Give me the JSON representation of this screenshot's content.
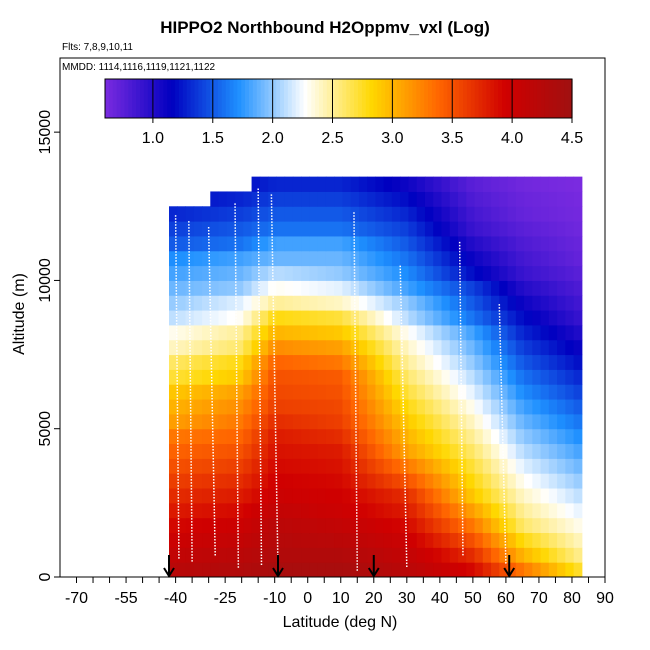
{
  "chart_data": {
    "type": "heatmap",
    "title": "HIPPO2 Northbound H2Oppmv_vxl (Log)",
    "flights_label": "Flts: 7,8,9,10,11",
    "dates_label": "MMDD: 1114,1116,1119,1121,1122",
    "xlabel": "Latitude (deg N)",
    "ylabel": "Altitude (m)",
    "xlim": [
      -75,
      90
    ],
    "ylim": [
      0,
      17500
    ],
    "x_ticks": [
      -70,
      -55,
      -40,
      -25,
      -10,
      0,
      10,
      20,
      30,
      40,
      50,
      60,
      70,
      80,
      90
    ],
    "y_ticks": [
      0,
      5000,
      10000,
      15000
    ],
    "colorbar": {
      "min": 0.6,
      "max": 4.5,
      "ticks": [
        1.0,
        1.5,
        2.0,
        2.5,
        3.0,
        3.5,
        4.0,
        4.5
      ],
      "tick_labels": [
        "1.0",
        "1.5",
        "2.0",
        "2.5",
        "3.0",
        "3.5",
        "4.0",
        "4.5"
      ],
      "colors": [
        "#7b2be0",
        "#0000c0",
        "#1e90ff",
        "#ffffff",
        "#ffd700",
        "#ff6600",
        "#d00000",
        "#a01010"
      ]
    },
    "arrow_latitudes": [
      -42,
      -9,
      20,
      61
    ],
    "altitude_bins_m": [
      0,
      500,
      1000,
      1500,
      2000,
      2500,
      3000,
      3500,
      4000,
      4500,
      5000,
      5500,
      6000,
      6500,
      7000,
      7500,
      8000,
      8500,
      9000,
      9500,
      10000,
      10500,
      11000,
      11500,
      12000,
      12500,
      13000,
      13500
    ],
    "lat_range_by_bin": [
      [
        -42,
        83
      ],
      [
        -42,
        83
      ],
      [
        -42,
        83
      ],
      [
        -42,
        83
      ],
      [
        -42,
        83
      ],
      [
        -42,
        83
      ],
      [
        -42,
        83
      ],
      [
        -42,
        83
      ],
      [
        -42,
        83
      ],
      [
        -42,
        83
      ],
      [
        -42,
        83
      ],
      [
        -42,
        83
      ],
      [
        -42,
        83
      ],
      [
        -42,
        83
      ],
      [
        -42,
        83
      ],
      [
        -42,
        83
      ],
      [
        -42,
        83
      ],
      [
        -42,
        83
      ],
      [
        -42,
        83
      ],
      [
        -42,
        82
      ],
      [
        -42,
        82
      ],
      [
        -42,
        82
      ],
      [
        -42,
        82
      ],
      [
        -42,
        81
      ],
      [
        -42,
        81
      ],
      [
        -30,
        81
      ],
      [
        -18,
        81
      ]
    ],
    "log_h2o_profile": [
      {
        "lat": -42,
        "values": [
          4.2,
          4.1,
          4.0,
          3.9,
          3.8,
          3.7,
          3.6,
          3.5,
          3.4,
          3.3,
          3.1,
          3.0,
          2.9,
          2.7,
          2.6,
          2.4,
          2.3,
          2.1,
          2.0,
          1.9,
          1.8,
          1.7,
          1.5,
          1.4,
          1.3,
          1.2,
          1.1
        ]
      },
      {
        "lat": -20,
        "values": [
          4.3,
          4.2,
          4.1,
          4.0,
          3.9,
          3.8,
          3.7,
          3.6,
          3.5,
          3.4,
          3.3,
          3.2,
          3.1,
          2.9,
          2.8,
          2.6,
          2.5,
          2.3,
          2.2,
          2.0,
          1.9,
          1.8,
          1.6,
          1.5,
          1.4,
          1.3,
          1.2
        ]
      },
      {
        "lat": -10,
        "values": [
          4.4,
          4.3,
          4.25,
          4.2,
          4.1,
          4.0,
          3.95,
          3.9,
          3.85,
          3.8,
          3.7,
          3.6,
          3.55,
          3.5,
          3.4,
          3.2,
          3.0,
          2.8,
          2.5,
          2.3,
          2.1,
          1.9,
          1.8,
          1.6,
          1.5,
          1.4,
          1.3
        ]
      },
      {
        "lat": 10,
        "values": [
          4.4,
          4.3,
          4.2,
          4.1,
          4.0,
          3.95,
          3.9,
          3.85,
          3.8,
          3.7,
          3.6,
          3.55,
          3.5,
          3.45,
          3.3,
          3.1,
          2.9,
          2.7,
          2.4,
          2.2,
          2.0,
          1.9,
          1.8,
          1.6,
          1.5,
          1.4,
          1.3
        ]
      },
      {
        "lat": 30,
        "values": [
          4.2,
          4.1,
          4.0,
          3.9,
          3.8,
          3.7,
          3.5,
          3.3,
          3.1,
          3.0,
          2.9,
          2.8,
          2.7,
          2.6,
          2.5,
          2.4,
          2.3,
          2.1,
          2.0,
          1.8,
          1.7,
          1.6,
          1.5,
          1.4,
          1.3,
          1.2,
          1.1
        ]
      },
      {
        "lat": 50,
        "values": [
          3.9,
          3.7,
          3.5,
          3.3,
          3.1,
          2.9,
          2.8,
          2.7,
          2.6,
          2.5,
          2.4,
          2.3,
          2.2,
          2.1,
          2.0,
          1.9,
          1.8,
          1.6,
          1.5,
          1.4,
          1.2,
          1.1,
          1.0,
          0.9,
          0.85,
          0.8,
          0.75
        ]
      },
      {
        "lat": 65,
        "values": [
          3.3,
          3.0,
          2.8,
          2.6,
          2.5,
          2.4,
          2.3,
          2.2,
          2.1,
          2.0,
          1.9,
          1.8,
          1.7,
          1.6,
          1.5,
          1.4,
          1.3,
          1.2,
          1.1,
          1.0,
          0.9,
          0.85,
          0.8,
          0.75,
          0.7,
          0.68,
          0.65
        ]
      },
      {
        "lat": 83,
        "values": [
          2.7,
          2.5,
          2.4,
          2.3,
          2.2,
          2.1,
          2.0,
          1.9,
          1.8,
          1.7,
          1.6,
          1.5,
          1.4,
          1.3,
          1.2,
          1.1,
          1.0,
          0.9,
          0.85,
          0.8,
          0.75,
          0.7,
          0.68,
          0.65,
          0.63,
          0.62,
          0.6
        ]
      }
    ]
  }
}
